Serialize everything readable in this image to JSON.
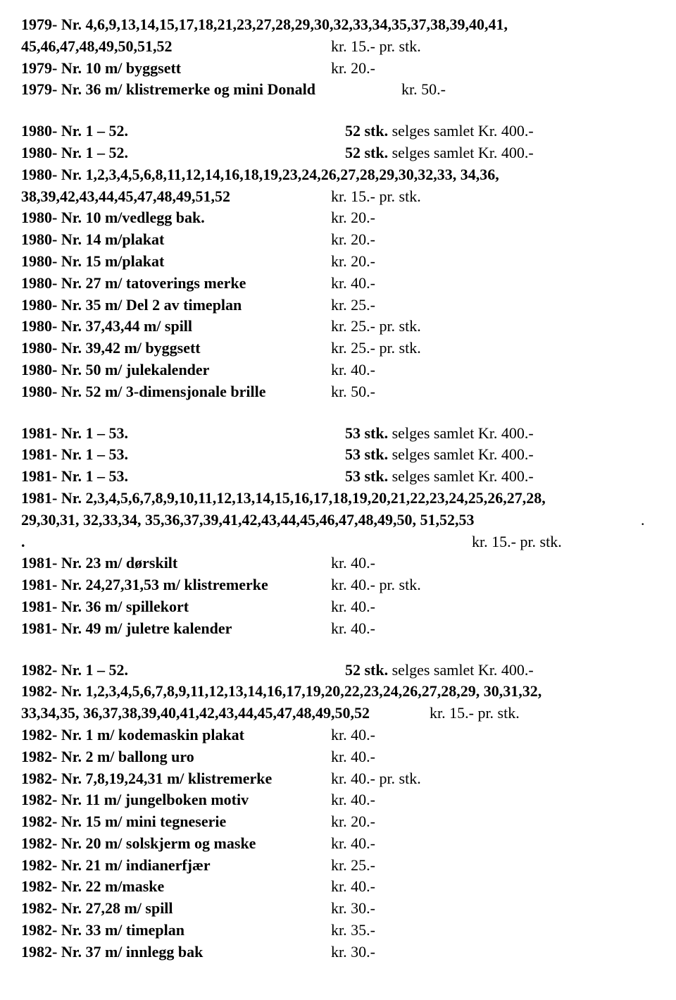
{
  "lines": [
    {
      "type": "plain",
      "html": "<span class='b'>1979-  Nr. 4,6,9,13,14,15,17,18,21,23,27,28,29,30,32,33,34,35,37,38,39,40,41,</span>"
    },
    {
      "type": "row",
      "left": "<span class='b'>45,46,47,48,49,50,51,52</span>",
      "right": "kr. 15.- pr. stk."
    },
    {
      "type": "row",
      "left": "<span class='b'>1979-  Nr. 10  m/ byggsett</span>",
      "right": "kr. 20.-"
    },
    {
      "type": "row",
      "left": "<span class='b'>1979-  Nr. 36  m/ klistremerke og mini Donald</span>",
      "right": "kr. 50.-",
      "wide": true,
      "padLeft": 540
    },
    {
      "type": "gap"
    },
    {
      "type": "row",
      "left": "<span class='b'>1980-  Nr. 1 – 52.</span>",
      "right": "<span class='b'>52 stk.</span> selges samlet  Kr. 400.-",
      "padLeft": 460
    },
    {
      "type": "row",
      "left": "<span class='b'>1980-  Nr. 1 – 52.</span>",
      "right": "<span class='b'>52 stk.</span> selges samlet  Kr. 400.-",
      "padLeft": 460
    },
    {
      "type": "plain",
      "html": "<span class='b'>1980-  Nr. 1,2,3,4,5,6,8,11,12,14,16,18,19,23,24,26,27,28,29,30,32,33, 34,36,</span>"
    },
    {
      "type": "row",
      "left": "<span class='b'>38,39,42,43,44,45,47,48,49,51,52</span>",
      "right": "kr. 15.- pr. stk."
    },
    {
      "type": "row",
      "left": "<span class='b'>1980-  Nr. 10  m/vedlegg bak.</span>",
      "right": "kr. 20.-"
    },
    {
      "type": "row",
      "left": "<span class='b'>1980-  Nr. 14  m/plakat</span>",
      "right": "kr. 20.-"
    },
    {
      "type": "row",
      "left": "<span class='b'>1980-  Nr. 15  m/plakat</span>",
      "right": "kr. 20.-"
    },
    {
      "type": "row",
      "left": "<span class='b'>1980-  Nr. 27  m/ tatoverings merke</span>",
      "right": "kr. 40.-"
    },
    {
      "type": "row",
      "left": "<span class='b'>1980-  Nr. 35  m/ Del 2 av timeplan</span>",
      "right": "kr. 25.-"
    },
    {
      "type": "row",
      "left": "<span class='b'>1980-  Nr. 37,43,44  m/ spill</span>",
      "right": "kr. 25.- pr. stk."
    },
    {
      "type": "row",
      "left": "<span class='b'>1980-  Nr. 39,42  m/ byggsett</span>",
      "right": "kr. 25.- pr. stk."
    },
    {
      "type": "row",
      "left": "<span class='b'>1980-  Nr. 50  m/ julekalender</span>",
      "right": "kr. 40.-"
    },
    {
      "type": "row",
      "left": "<span class='b'>1980-  Nr. 52  m/ 3-dimensjonale brille</span>",
      "right": " kr. 50.-"
    },
    {
      "type": "gap"
    },
    {
      "type": "row",
      "left": "<span class='b'>1981-  Nr. 1 – 53.</span>",
      "right": "<span class='b'>53 stk.</span> selges samlet  Kr. 400.-",
      "padLeft": 460
    },
    {
      "type": "row",
      "left": "<span class='b'>1981-  Nr. 1 – 53.</span>",
      "right": "<span class='b'>53 stk.</span> selges samlet  Kr. 400.-",
      "padLeft": 460
    },
    {
      "type": "row",
      "left": "<span class='b'>1981-  Nr. 1 – 53.</span>",
      "right": "<span class='b'>53 stk.</span> selges samlet  Kr. 400.-",
      "padLeft": 460
    },
    {
      "type": "plain",
      "html": "<span class='b'>1981-  Nr. 2,3,4,5,6,7,8,9,10,11,12,13,14,15,16,17,18,19,20,21,22,23,24,25,26,27,28,</span>"
    },
    {
      "type": "row",
      "left": "<span class='b'>29,30,31, 32,33,34, 35,36,37,39,41,42,43,44,45,46,47,48,49,50, 51,52,53</span>",
      "right": ".",
      "wide": true,
      "padLeft": 880
    },
    {
      "type": "row",
      "left": "<span class='b'>.</span>",
      "right": "kr. 15.- pr. stk.",
      "padLeft": 640
    },
    {
      "type": "row",
      "left": "<span class='b'>1981-  Nr. 23 m/ dørskilt</span>",
      "right": "kr. 40.-"
    },
    {
      "type": "row",
      "left": "<span class='b'>1981-  Nr. 24,27,31,53  m/ klistremerke</span>",
      "right": "kr. 40.- pr. stk."
    },
    {
      "type": "row",
      "left": "<span class='b'>1981-  Nr. 36  m/ spillekort</span>",
      "right": "kr. 40.-"
    },
    {
      "type": "row",
      "left": "<span class='b'>1981-  Nr. 49  m/ juletre kalender</span>",
      "right": "kr. 40.-"
    },
    {
      "type": "gap"
    },
    {
      "type": "row",
      "left": "<span class='b'>1982-  Nr. 1 – 52.</span>",
      "right": "<span class='b'>52 stk.</span> selges samlet  Kr. 400.-",
      "padLeft": 460
    },
    {
      "type": "plain",
      "html": "<span class='b'>1982-  Nr. 1,2,3,4,5,6,7,8,9,11,12,13,14,16,17,19,20,22,23,24,26,27,28,29, 30,31,32,</span>"
    },
    {
      "type": "row",
      "left": "<span class='b'>33,34,35, 36,37,38,39,40,41,42,43,44,45,47,48,49,50,52</span>",
      "right": "kr. 15.- pr. stk.",
      "wide": true,
      "padLeft": 580
    },
    {
      "type": "row",
      "left": "<span class='b'>1982-  Nr. 1  m/ kodemaskin plakat</span>",
      "right": "kr. 40.-"
    },
    {
      "type": "row",
      "left": "<span class='b'>1982-  Nr. 2  m/ ballong uro</span>",
      "right": "kr. 40.-"
    },
    {
      "type": "row",
      "left": "<span class='b'>1982-  Nr. 7,8,19,24,31  m/ klistremerke</span>",
      "right": "kr. 40.- pr. stk."
    },
    {
      "type": "row",
      "left": "<span class='b'>1982-  Nr. 11  m/ jungelboken motiv</span>",
      "right": "kr. 40.-"
    },
    {
      "type": "row",
      "left": "<span class='b'>1982-  Nr. 15  m/ mini tegneserie</span>",
      "right": "kr. 20.-"
    },
    {
      "type": "row",
      "left": "<span class='b'>1982-  Nr. 20  m/ solskjerm og maske</span>",
      "right": "kr. 40.-"
    },
    {
      "type": "row",
      "left": "<span class='b'>1982-  Nr. 21  m/ indianerfjær</span>",
      "right": "kr. 25.-"
    },
    {
      "type": "row",
      "left": "<span class='b'>1982-  Nr. 22  m/maske</span>",
      "right": "kr. 40.-"
    },
    {
      "type": "row",
      "left": "<span class='b'>1982-  Nr. 27,28  m/ spill</span>",
      "right": "kr. 30.-"
    },
    {
      "type": "row",
      "left": "<span class='b'>1982-  Nr. 33  m/ timeplan</span>",
      "right": "kr. 35.-"
    },
    {
      "type": "row",
      "left": "<span class='b'>1982-  Nr. 37  m/ innlegg bak</span>",
      "right": "kr. 30.-"
    }
  ]
}
